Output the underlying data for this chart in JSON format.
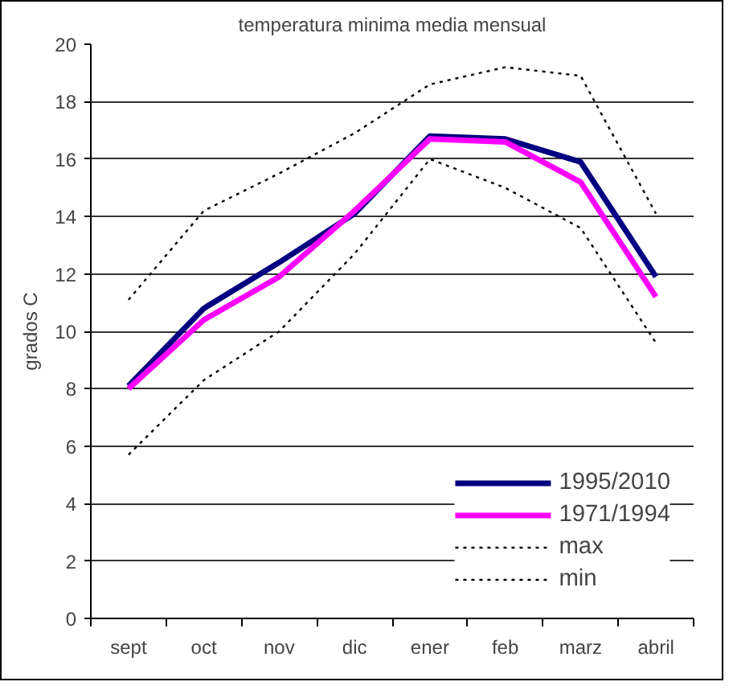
{
  "chart_data": {
    "type": "line",
    "title": "temperatura minima media mensual",
    "ylabel": "grados C",
    "categories": [
      "sept",
      "oct",
      "nov",
      "dic",
      "ener",
      "feb",
      "marz",
      "abril"
    ],
    "ylim": [
      0,
      20
    ],
    "yticks": [
      0,
      2,
      4,
      6,
      8,
      10,
      12,
      14,
      16,
      18,
      20
    ],
    "grid": "y",
    "legend": "bottom right",
    "series": [
      {
        "name": "1995/2010",
        "color": "#000080",
        "values": [
          8.1,
          10.8,
          12.4,
          14.1,
          16.8,
          16.7,
          15.9,
          11.9
        ]
      },
      {
        "name": "1971/1994",
        "color": "#ff00ff",
        "values": [
          8.0,
          10.4,
          11.9,
          14.2,
          16.7,
          16.6,
          15.2,
          11.2
        ]
      },
      {
        "name": "max",
        "color": "#000000",
        "line_style": "dotted",
        "values": [
          11.1,
          14.2,
          15.5,
          16.9,
          18.6,
          19.2,
          18.9,
          14.1
        ]
      },
      {
        "name": "min",
        "color": "#000000",
        "line_style": "dotted",
        "values": [
          5.7,
          8.3,
          10.0,
          12.7,
          16.0,
          15.0,
          13.6,
          9.6
        ]
      }
    ]
  }
}
